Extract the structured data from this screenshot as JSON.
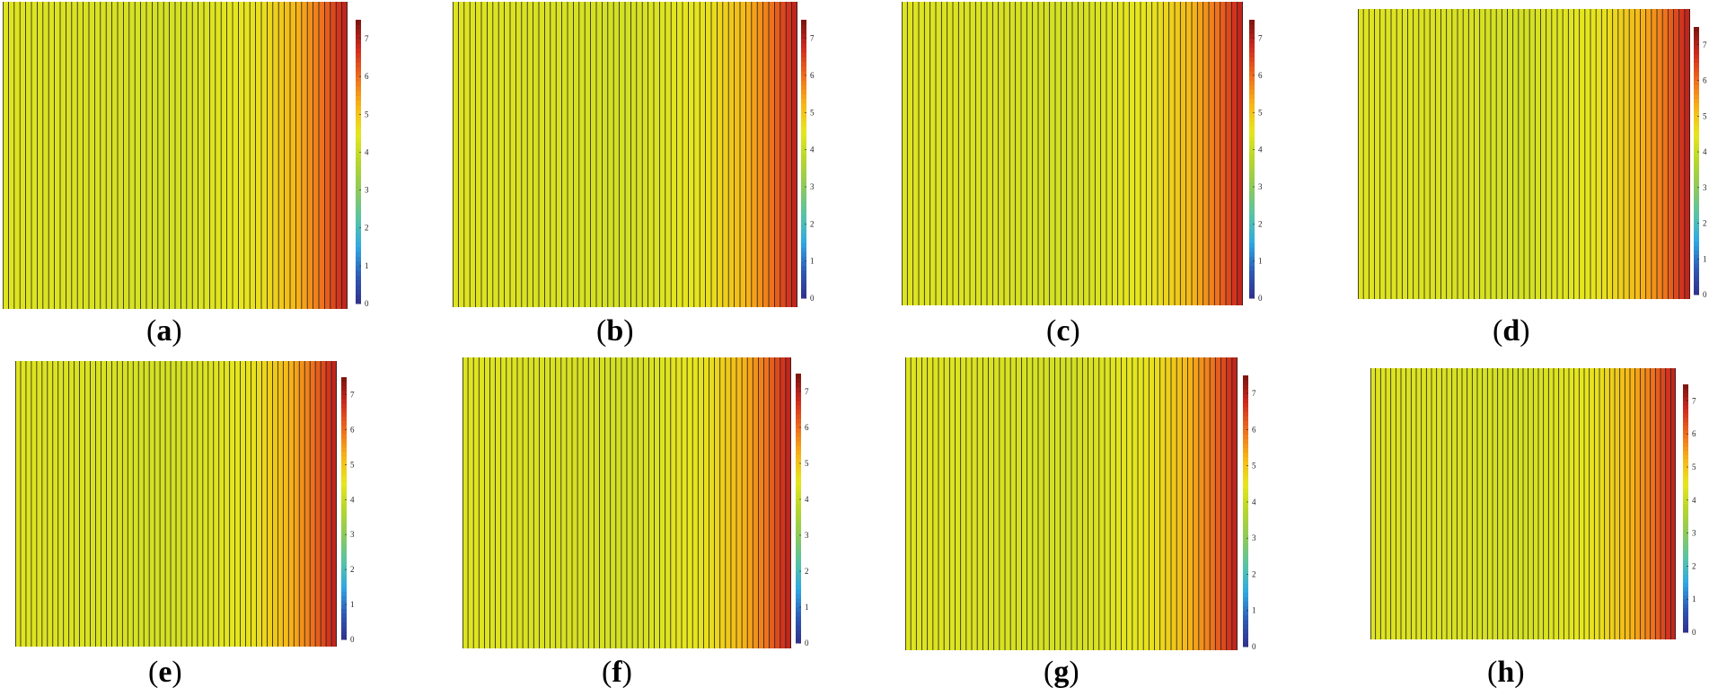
{
  "colormap": {
    "stops": [
      "#30308c",
      "#2f5ab4",
      "#2fa9e2",
      "#58c3a4",
      "#8cc95c",
      "#b6d62c",
      "#e6e61e",
      "#f7b417",
      "#ed6d1d",
      "#cf2a1e",
      "#7a1410"
    ],
    "line_color": "#1e1e1e"
  },
  "chart_data": [
    {
      "type": "heatmap",
      "label": "a",
      "colorbar": {
        "min": 0,
        "max": 7.5,
        "ticks": [
          0,
          1,
          2,
          3,
          4,
          5,
          6,
          7
        ]
      },
      "columns": 60,
      "field": {
        "x": [
          0,
          0.5,
          0.75,
          0.85,
          0.93,
          1.0
        ],
        "value": [
          4.4,
          4.2,
          4.6,
          5.2,
          6.0,
          7.0
        ]
      }
    },
    {
      "type": "heatmap",
      "label": "b",
      "colorbar": {
        "min": 0,
        "max": 7.5,
        "ticks": [
          0,
          1,
          2,
          3,
          4,
          5,
          6,
          7
        ]
      },
      "columns": 60,
      "field": {
        "x": [
          0,
          0.5,
          0.75,
          0.85,
          0.93,
          1.0
        ],
        "value": [
          4.4,
          4.2,
          4.6,
          5.2,
          6.0,
          7.0
        ]
      }
    },
    {
      "type": "heatmap",
      "label": "c",
      "colorbar": {
        "min": 0,
        "max": 7.5,
        "ticks": [
          0,
          1,
          2,
          3,
          4,
          5,
          6,
          7
        ]
      },
      "columns": 60,
      "field": {
        "x": [
          0,
          0.5,
          0.75,
          0.85,
          0.93,
          1.0
        ],
        "value": [
          4.4,
          4.2,
          4.6,
          5.2,
          6.0,
          7.0
        ]
      }
    },
    {
      "type": "heatmap",
      "label": "d",
      "colorbar": {
        "min": 0,
        "max": 7.5,
        "ticks": [
          0,
          1,
          2,
          3,
          4,
          5,
          6,
          7
        ]
      },
      "columns": 60,
      "field": {
        "x": [
          0,
          0.5,
          0.75,
          0.85,
          0.93,
          1.0
        ],
        "value": [
          4.4,
          4.2,
          4.6,
          5.2,
          6.0,
          7.0
        ]
      }
    },
    {
      "type": "heatmap",
      "label": "e",
      "colorbar": {
        "min": 0,
        "max": 7.5,
        "ticks": [
          0,
          1,
          2,
          3,
          4,
          5,
          6,
          7
        ]
      },
      "columns": 60,
      "field": {
        "x": [
          0,
          0.5,
          0.75,
          0.85,
          0.93,
          1.0
        ],
        "value": [
          4.4,
          4.2,
          4.6,
          5.2,
          6.0,
          7.0
        ]
      }
    },
    {
      "type": "heatmap",
      "label": "f",
      "colorbar": {
        "min": 0,
        "max": 7.5,
        "ticks": [
          0,
          1,
          2,
          3,
          4,
          5,
          6,
          7
        ]
      },
      "columns": 60,
      "field": {
        "x": [
          0,
          0.5,
          0.75,
          0.85,
          0.93,
          1.0
        ],
        "value": [
          4.4,
          4.2,
          4.6,
          5.2,
          6.0,
          7.0
        ]
      }
    },
    {
      "type": "heatmap",
      "label": "g",
      "colorbar": {
        "min": 0,
        "max": 7.5,
        "ticks": [
          0,
          1,
          2,
          3,
          4,
          5,
          6,
          7
        ]
      },
      "columns": 60,
      "field": {
        "x": [
          0,
          0.5,
          0.75,
          0.85,
          0.93,
          1.0
        ],
        "value": [
          4.4,
          4.2,
          4.6,
          5.2,
          6.0,
          7.0
        ]
      }
    },
    {
      "type": "heatmap",
      "label": "h",
      "colorbar": {
        "min": 0,
        "max": 7.5,
        "ticks": [
          0,
          1,
          2,
          3,
          4,
          5,
          6,
          7
        ]
      },
      "columns": 60,
      "field": {
        "x": [
          0,
          0.5,
          0.75,
          0.85,
          0.93,
          1.0
        ],
        "value": [
          4.4,
          4.2,
          4.6,
          5.2,
          6.0,
          7.0
        ]
      }
    }
  ]
}
